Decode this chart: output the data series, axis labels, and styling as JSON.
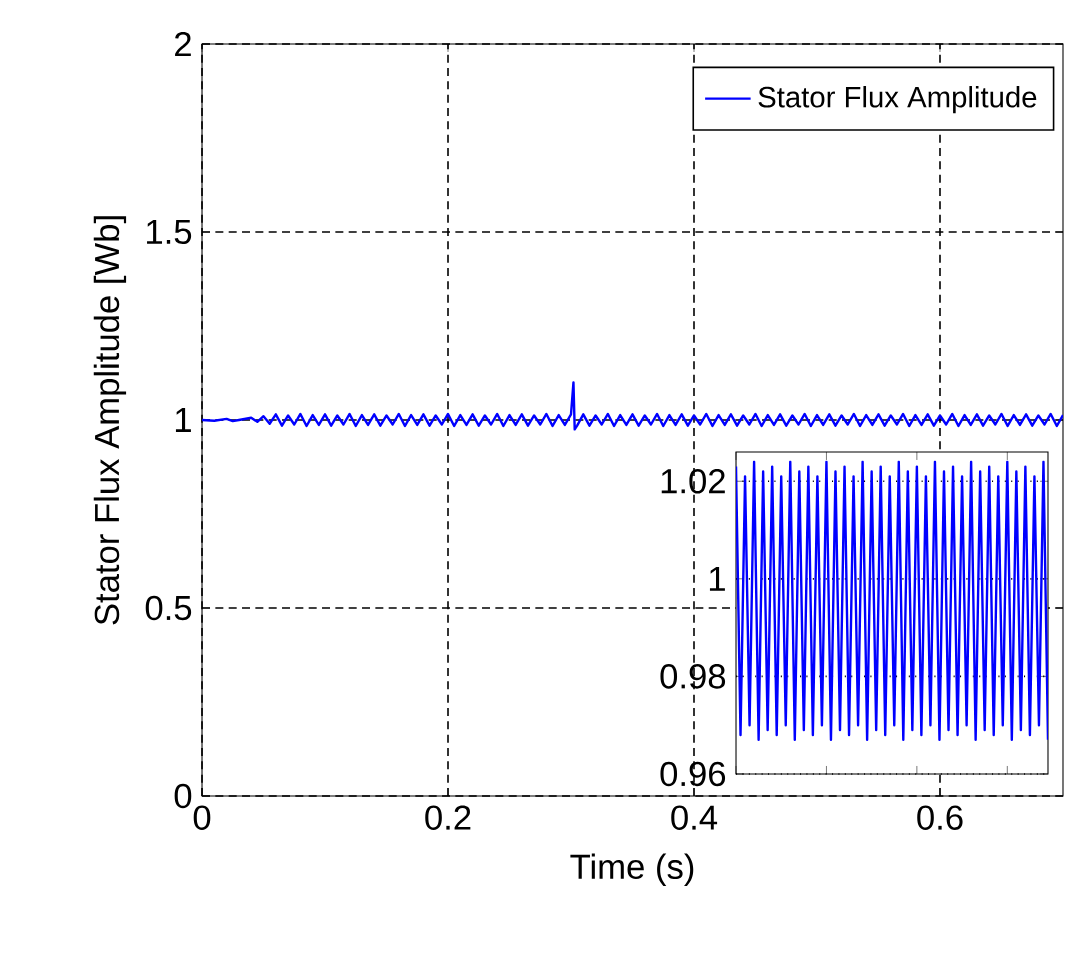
{
  "chart_data": [
    {
      "type": "line",
      "xlabel": "Time (s)",
      "ylabel": "Stator Flux Amplitude [Wb]",
      "xlim": [
        0,
        0.7
      ],
      "ylim": [
        0,
        2
      ],
      "xticks": [
        0,
        0.2,
        0.4,
        0.6
      ],
      "yticks": [
        0,
        0.5,
        1,
        1.5,
        2
      ],
      "grid": true,
      "legend": "top right",
      "series": [
        {
          "name": "Stator Flux Amplitude",
          "color": "#0000ff",
          "x": [
            0,
            0.01,
            0.02,
            0.025,
            0.03,
            0.04,
            0.045,
            0.05,
            0.055,
            0.06,
            0.065,
            0.07,
            0.075,
            0.08,
            0.085,
            0.09,
            0.095,
            0.1,
            0.105,
            0.11,
            0.115,
            0.12,
            0.125,
            0.13,
            0.135,
            0.14,
            0.145,
            0.15,
            0.155,
            0.16,
            0.165,
            0.17,
            0.175,
            0.18,
            0.185,
            0.19,
            0.195,
            0.2,
            0.205,
            0.21,
            0.215,
            0.22,
            0.225,
            0.23,
            0.235,
            0.24,
            0.245,
            0.25,
            0.255,
            0.26,
            0.265,
            0.27,
            0.275,
            0.28,
            0.285,
            0.29,
            0.295,
            0.3,
            0.302,
            0.303,
            0.305,
            0.31,
            0.315,
            0.32,
            0.325,
            0.33,
            0.335,
            0.34,
            0.345,
            0.35,
            0.355,
            0.36,
            0.365,
            0.37,
            0.375,
            0.38,
            0.385,
            0.39,
            0.395,
            0.4,
            0.405,
            0.41,
            0.415,
            0.42,
            0.425,
            0.43,
            0.435,
            0.44,
            0.445,
            0.45,
            0.455,
            0.46,
            0.465,
            0.47,
            0.475,
            0.48,
            0.485,
            0.49,
            0.495,
            0.5,
            0.505,
            0.51,
            0.515,
            0.52,
            0.525,
            0.53,
            0.535,
            0.54,
            0.545,
            0.55,
            0.555,
            0.56,
            0.565,
            0.57,
            0.575,
            0.58,
            0.585,
            0.59,
            0.595,
            0.6,
            0.605,
            0.61,
            0.615,
            0.62,
            0.625,
            0.63,
            0.635,
            0.64,
            0.645,
            0.65,
            0.655,
            0.66,
            0.665,
            0.67,
            0.675,
            0.68,
            0.685,
            0.69,
            0.695,
            0.7
          ],
          "values": [
            1.0,
            0.998,
            1.003,
            0.997,
            1.0,
            1.006,
            0.995,
            1.01,
            0.99,
            1.015,
            0.985,
            1.012,
            0.988,
            1.016,
            0.984,
            1.013,
            0.987,
            1.015,
            0.985,
            1.012,
            0.988,
            1.016,
            0.984,
            1.013,
            0.987,
            1.015,
            0.985,
            1.012,
            0.988,
            1.016,
            0.984,
            1.013,
            0.987,
            1.015,
            0.985,
            1.012,
            0.988,
            1.016,
            0.984,
            1.013,
            0.987,
            1.015,
            0.985,
            1.012,
            0.988,
            1.016,
            0.984,
            1.013,
            0.987,
            1.015,
            0.985,
            1.012,
            0.988,
            1.016,
            0.984,
            1.013,
            0.987,
            1.015,
            1.1,
            0.975,
            0.985,
            1.015,
            0.985,
            1.012,
            0.988,
            1.016,
            0.984,
            1.013,
            0.987,
            1.015,
            0.985,
            1.012,
            0.988,
            1.016,
            0.984,
            1.013,
            0.987,
            1.015,
            0.985,
            1.012,
            0.988,
            1.016,
            0.984,
            1.013,
            0.987,
            1.015,
            0.985,
            1.012,
            0.988,
            1.016,
            0.984,
            1.013,
            0.987,
            1.015,
            0.985,
            1.012,
            0.988,
            1.016,
            0.984,
            1.013,
            0.987,
            1.015,
            0.985,
            1.012,
            0.988,
            1.016,
            0.984,
            1.013,
            0.987,
            1.015,
            0.985,
            1.012,
            0.988,
            1.016,
            0.984,
            1.013,
            0.987,
            1.015,
            0.985,
            1.012,
            0.988,
            1.016,
            0.984,
            1.013,
            0.987,
            1.015,
            0.985,
            1.012,
            0.988,
            1.016,
            0.984,
            1.013,
            0.987,
            1.015,
            0.985,
            1.012,
            0.988,
            1.016,
            0.984,
            1.013
          ]
        }
      ]
    },
    {
      "type": "line",
      "categories": [
        null,
        null,
        null,
        null,
        null,
        null,
        null,
        null,
        null,
        null,
        null,
        null,
        null,
        null,
        null,
        null,
        null,
        null,
        null,
        null,
        null,
        null,
        null,
        null,
        null,
        null,
        null,
        null,
        null,
        null,
        null,
        null,
        null,
        null,
        null,
        null,
        null,
        null,
        null,
        null,
        null,
        null,
        null,
        null,
        null,
        null,
        null,
        null,
        null,
        null,
        null,
        null,
        null,
        null,
        null,
        null,
        null,
        null,
        null,
        null,
        null,
        null,
        null,
        null,
        null,
        null,
        null,
        null,
        null,
        null
      ],
      "ylim": [
        0.96,
        1.026
      ],
      "yticks": [
        0.96,
        0.98,
        1,
        1.02
      ],
      "grid": "y",
      "series": [
        {
          "color": "#0000ff",
          "values": [
            1.023,
            0.968,
            1.021,
            0.97,
            1.024,
            0.967,
            1.022,
            0.969,
            1.023,
            0.968,
            1.021,
            0.97,
            1.024,
            0.967,
            1.022,
            0.969,
            1.023,
            0.968,
            1.021,
            0.97,
            1.024,
            0.967,
            1.022,
            0.969,
            1.023,
            0.968,
            1.021,
            0.97,
            1.024,
            0.967,
            1.022,
            0.969,
            1.023,
            0.968,
            1.021,
            0.97,
            1.024,
            0.967,
            1.022,
            0.969,
            1.023,
            0.968,
            1.021,
            0.97,
            1.024,
            0.967,
            1.022,
            0.969,
            1.023,
            0.968,
            1.021,
            0.97,
            1.024,
            0.967,
            1.022,
            0.969,
            1.023,
            0.968,
            1.021,
            0.97,
            1.024,
            0.967,
            1.022,
            0.969,
            1.023,
            0.968,
            1.021,
            0.97,
            1.024,
            0.967
          ]
        }
      ]
    }
  ]
}
